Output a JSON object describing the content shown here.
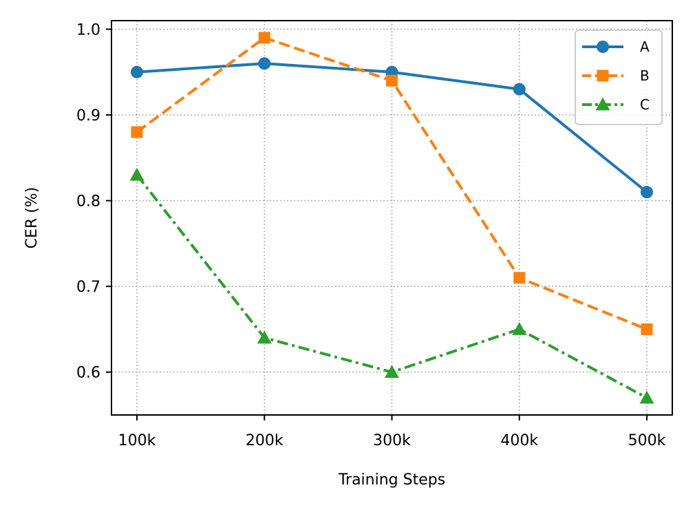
{
  "chart_data": {
    "type": "line",
    "title": "",
    "xlabel": "Training Steps",
    "ylabel": "CER (%)",
    "categories": [
      "100k",
      "200k",
      "300k",
      "400k",
      "500k"
    ],
    "ylim": [
      0.55,
      1.01
    ],
    "yticks": [
      0.6,
      0.7,
      0.8,
      0.9,
      1.0
    ],
    "ytick_labels": [
      "0.6",
      "0.7",
      "0.8",
      "0.9",
      "1.0"
    ],
    "grid": true,
    "legend_position": "top-right",
    "series": [
      {
        "name": "A",
        "values": [
          0.95,
          0.96,
          0.95,
          0.93,
          0.81
        ],
        "color": "#1f77b4",
        "linestyle": "solid",
        "marker": "circle"
      },
      {
        "name": "B",
        "values": [
          0.88,
          0.99,
          0.94,
          0.71,
          0.65
        ],
        "color": "#ff7f0e",
        "linestyle": "dashed",
        "marker": "square"
      },
      {
        "name": "C",
        "values": [
          0.83,
          0.64,
          0.6,
          0.65,
          0.57
        ],
        "color": "#2ca02c",
        "linestyle": "dashdot",
        "marker": "triangle"
      }
    ]
  }
}
